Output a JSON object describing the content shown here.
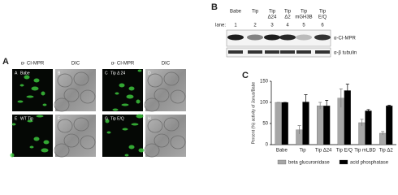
{
  "panel_a": {
    "label": "A",
    "column_headers": [
      "α- CI-MPR",
      "DIC",
      "α- CI-MPR",
      "DIC"
    ],
    "images": [
      {
        "letter": "A",
        "caption": "Babe"
      },
      {
        "letter": "B"
      },
      {
        "letter": "C",
        "caption": "Tip Δ 24"
      },
      {
        "letter": "D"
      },
      {
        "letter": "E",
        "caption": "WT Tip"
      },
      {
        "letter": "F"
      },
      {
        "letter": "G",
        "caption": "Tip E/Q"
      },
      {
        "letter": "H"
      }
    ]
  },
  "panel_b": {
    "label": "B",
    "lanes": [
      [
        "Babe"
      ],
      [
        "Tip"
      ],
      [
        "Tip",
        "Δ24"
      ],
      [
        "Tip",
        "Δ2"
      ],
      [
        "Tip",
        "mGH3B"
      ],
      [
        "Tip",
        "E/Q"
      ]
    ],
    "lane_label": "lane:",
    "lane_numbers": [
      "1",
      "2",
      "3",
      "4",
      "5",
      "6"
    ],
    "blot_labels": [
      "α-CI-MPR",
      "α-β tubulin"
    ]
  },
  "chart_data": {
    "type": "bar",
    "label": "C",
    "y_label": "Percent (%) activity of Janus/Babe",
    "categories": [
      "Babe",
      "Tip",
      "Tip Δ24",
      "Tip E/Q",
      "Tip mLBD",
      "Tip Δ2"
    ],
    "series": [
      {
        "name": "beta glucuronidase",
        "color": "#a6a6a6",
        "values": [
          100,
          35,
          92,
          110,
          52,
          27
        ],
        "errors": [
          0,
          10,
          8,
          22,
          8,
          4
        ]
      },
      {
        "name": "acid phosphatase",
        "color": "#000000",
        "values": [
          100,
          101,
          92,
          128,
          80,
          92
        ],
        "errors": [
          0,
          17,
          13,
          15,
          3,
          1
        ]
      }
    ],
    "ylim": [
      0,
      150
    ],
    "yticks": [
      0,
      50,
      100,
      150
    ],
    "grid": false
  }
}
